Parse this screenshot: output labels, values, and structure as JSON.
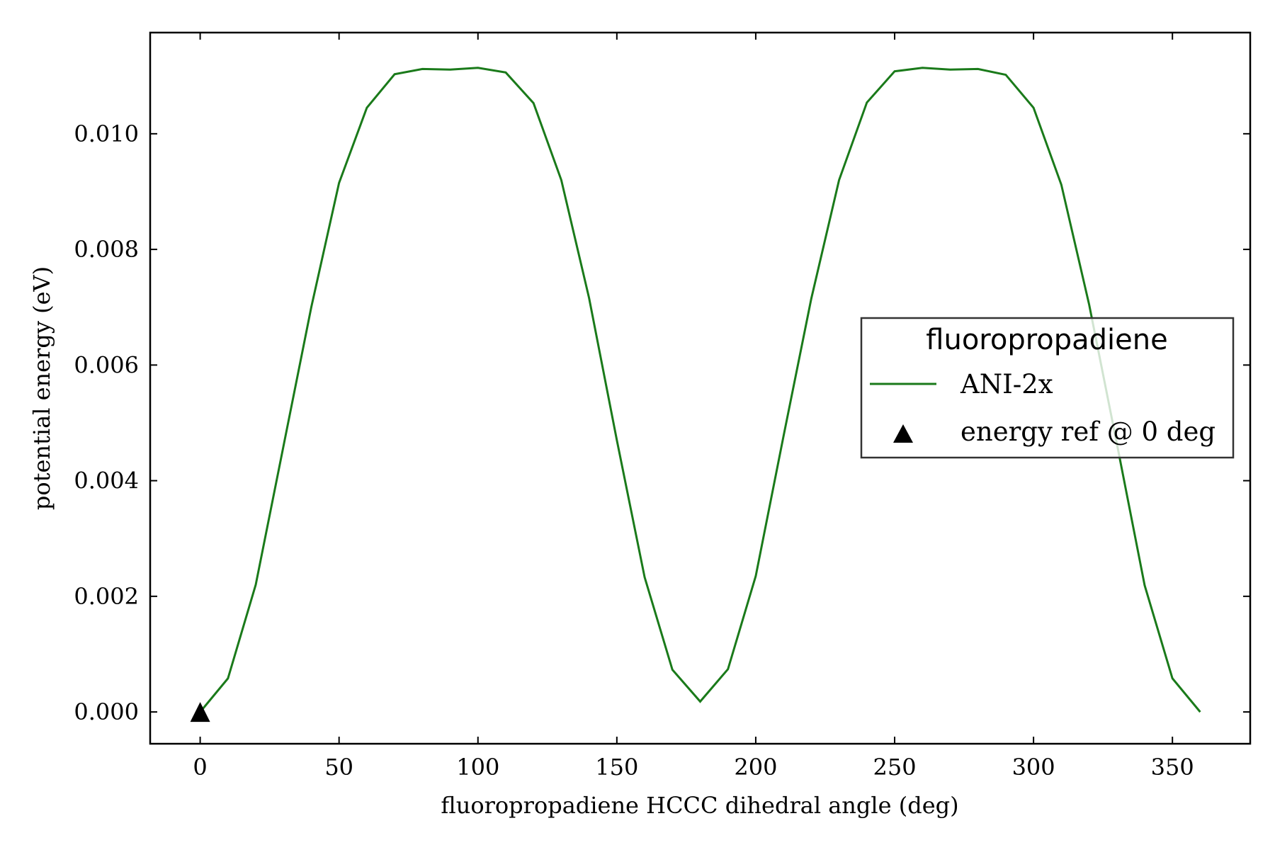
{
  "chart_data": {
    "type": "line",
    "xlabel": "fluoropropadiene HCCC dihedral angle (deg)",
    "ylabel": "potential energy (eV)",
    "xlim": [
      -18,
      378
    ],
    "ylim": [
      -0.00055,
      0.01175
    ],
    "xticks": [
      0,
      50,
      100,
      150,
      200,
      250,
      300,
      350
    ],
    "yticks": [
      0.0,
      0.002,
      0.004,
      0.006,
      0.008,
      0.01
    ],
    "ytick_labels": [
      "0.000",
      "0.002",
      "0.004",
      "0.006",
      "0.008",
      "0.010"
    ],
    "xtick_labels": [
      "0",
      "50",
      "100",
      "150",
      "200",
      "250",
      "300",
      "350"
    ],
    "grid": false,
    "legend": {
      "title": "fluoropropadiene",
      "placement": "center-right",
      "entries": [
        "ANI-2x",
        "energy ref @ 0 deg"
      ]
    },
    "series": [
      {
        "name": "ANI-2x",
        "kind": "line",
        "color": "#1a7a1a",
        "x": [
          0,
          10,
          20,
          30,
          40,
          50,
          60,
          70,
          80,
          90,
          100,
          110,
          120,
          130,
          140,
          150,
          160,
          170,
          180,
          190,
          200,
          210,
          220,
          230,
          240,
          250,
          260,
          270,
          280,
          290,
          300,
          310,
          320,
          330,
          340,
          350,
          360
        ],
        "y": [
          0.0,
          0.00058,
          0.0022,
          0.0046,
          0.007,
          0.00915,
          0.01045,
          0.01103,
          0.01112,
          0.01111,
          0.01114,
          0.01106,
          0.01053,
          0.0092,
          0.00716,
          0.0047,
          0.00233,
          0.00073,
          0.00018,
          0.00074,
          0.00235,
          0.00477,
          0.00715,
          0.0092,
          0.01054,
          0.01108,
          0.01114,
          0.01111,
          0.01112,
          0.01102,
          0.01045,
          0.00912,
          0.00705,
          0.00464,
          0.00219,
          0.00058,
          0.0
        ]
      },
      {
        "name": "energy ref @ 0 deg",
        "kind": "marker",
        "marker": "triangle",
        "color": "#000000",
        "x": [
          0
        ],
        "y": [
          0.0
        ]
      }
    ]
  }
}
